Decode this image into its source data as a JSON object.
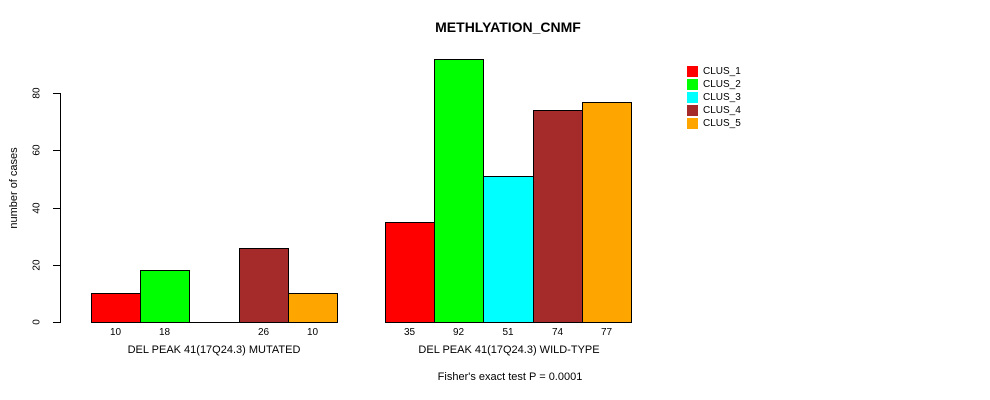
{
  "chart_data": {
    "type": "bar",
    "title": "METHLYATION_CNMF",
    "ylabel": "number of cases",
    "subtitle": "Fisher's exact test P = 0.0001",
    "yticks": [
      0,
      20,
      40,
      60,
      80
    ],
    "ylim": [
      0,
      92
    ],
    "grid": false,
    "legend_position": "right",
    "series_names": [
      "CLUS_1",
      "CLUS_2",
      "CLUS_3",
      "CLUS_4",
      "CLUS_5"
    ],
    "series_colors": [
      "#ff0000",
      "#00ff00",
      "#00ffff",
      "#a52a2a",
      "#ffa500"
    ],
    "groups": [
      {
        "label": "DEL PEAK 41(17Q24.3) MUTATED",
        "values": [
          10,
          18,
          0,
          26,
          10
        ],
        "value_labels": [
          "10",
          "18",
          "",
          "26",
          "10"
        ]
      },
      {
        "label": "DEL PEAK 41(17Q24.3) WILD-TYPE",
        "values": [
          35,
          92,
          51,
          74,
          77
        ],
        "value_labels": [
          "35",
          "92",
          "51",
          "74",
          "77"
        ]
      }
    ]
  }
}
